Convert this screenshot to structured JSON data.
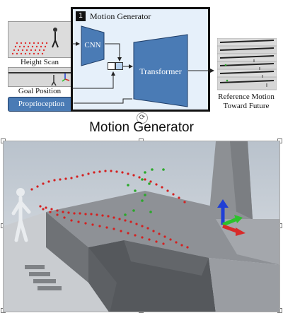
{
  "panel_number": "1",
  "motion_generator_box_title": "Motion Generator",
  "labels": {
    "height_scan": "Height Scan",
    "goal_position": "Goal Position",
    "proprioception": "Proprioception",
    "cnn": "CNN",
    "transformer": "Transformer",
    "reference_motion_line1": "Reference Motion",
    "reference_motion_line2": "Toward Future"
  },
  "heading": "Motion Generator",
  "icons": [
    "rotate-handle-icon",
    "axis-gizmo-icon",
    "humanoid-robot-icon"
  ],
  "colors": {
    "block_blue": "#4a7bb5",
    "panel_bg": "#e6f0fa",
    "trajectory_red": "#d42020",
    "trajectory_green": "#2aa82a",
    "axis_blue": "#1f3fd6",
    "axis_green": "#2cc22c",
    "axis_red": "#d82a2a"
  }
}
